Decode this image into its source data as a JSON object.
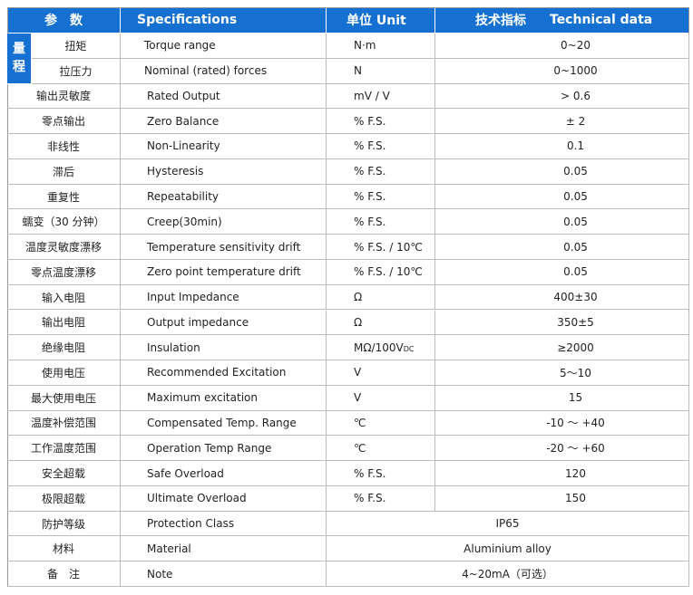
{
  "header": {
    "param": "参　数",
    "spec": "Specifications",
    "unit": "单位 Unit",
    "tech_cn": "技术指标",
    "tech_en": "Technical data"
  },
  "table": {
    "group_label": "量程",
    "rows": [
      {
        "cn": "扭矩",
        "en": "Torque range",
        "unit": "N·m",
        "value": "0~20"
      },
      {
        "cn": "拉压力",
        "en": "Nominal (rated) forces",
        "unit": "N",
        "value": "0~1000"
      },
      {
        "cn": "输出灵敏度",
        "en": "Rated Output",
        "unit": "mV / V",
        "value": "> 0.6"
      },
      {
        "cn": "零点输出",
        "en": "Zero Balance",
        "unit": "% F.S.",
        "value": "± 2"
      },
      {
        "cn": "非线性",
        "en": "Non-Linearity",
        "unit": "% F.S.",
        "value": "0.1"
      },
      {
        "cn": "滞后",
        "en": "Hysteresis",
        "unit": "% F.S.",
        "value": "0.05"
      },
      {
        "cn": "重复性",
        "en": "Repeatability",
        "unit": "% F.S.",
        "value": "0.05"
      },
      {
        "cn": "蠕变（30 分钟）",
        "en": "Creep(30min)",
        "unit": "% F.S.",
        "value": "0.05"
      },
      {
        "cn": "温度灵敏度漂移",
        "en": "Temperature sensitivity drift",
        "unit": "% F.S. / 10℃",
        "value": "0.05"
      },
      {
        "cn": "零点温度漂移",
        "en": "Zero point temperature drift",
        "unit": "% F.S. / 10℃",
        "value": "0.05"
      },
      {
        "cn": "输入电阻",
        "en": "Input Impedance",
        "unit": "Ω",
        "value": "400±30"
      },
      {
        "cn": "输出电阻",
        "en": "Output impedance",
        "unit": "Ω",
        "value": "350±5"
      },
      {
        "cn": "绝缘电阻",
        "en": "Insulation",
        "unit": "MΩ/100V",
        "unit_sub": "DC",
        "value": "≥2000"
      },
      {
        "cn": "使用电压",
        "en": "Recommended Excitation",
        "unit": "V",
        "value": "5～10"
      },
      {
        "cn": "最大使用电压",
        "en": "Maximum excitation",
        "unit": "V",
        "value": "15"
      },
      {
        "cn": "温度补偿范围",
        "en": "Compensated Temp. Range",
        "unit": "℃",
        "value": "-10 ～ +40"
      },
      {
        "cn": "工作温度范围",
        "en": "Operation Temp Range",
        "unit": "℃",
        "value": "-20 ～ +60"
      },
      {
        "cn": "安全超载",
        "en": "Safe Overload",
        "unit": "% F.S.",
        "value": "120"
      },
      {
        "cn": "极限超载",
        "en": "Ultimate Overload",
        "unit": "% F.S.",
        "value": "150"
      },
      {
        "cn": "防护等级",
        "en": "Protection Class",
        "value": "IP65"
      },
      {
        "cn": "材料",
        "en": "Material",
        "value": "Aluminium alloy"
      },
      {
        "cn": "备　注",
        "en": "Note",
        "value": "4~20mA（可选）"
      }
    ]
  }
}
